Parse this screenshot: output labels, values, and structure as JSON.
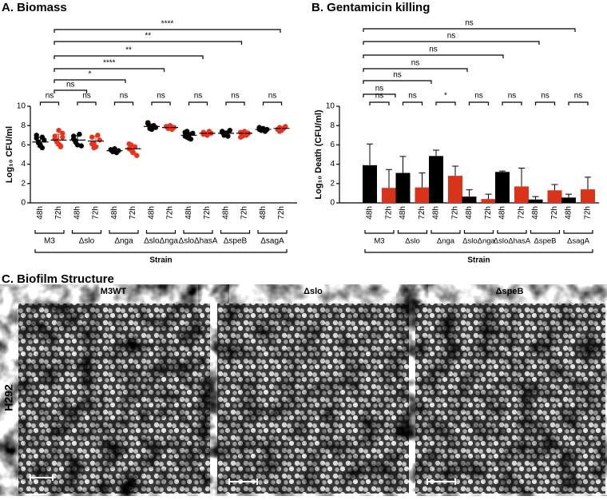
{
  "chart_data": [
    {
      "type": "dot",
      "title": "A. Biomass",
      "y_label": "Log₁₀ CFU/ml",
      "x_label": "Strain",
      "categories": [
        "M3",
        "Δslo",
        "Δnga",
        "ΔsloΔnga",
        "ΔsloΔhasA",
        "ΔspeB",
        "ΔsagA"
      ],
      "ylim": [
        0,
        10
      ],
      "yticks": [
        0,
        2,
        4,
        6,
        8,
        10
      ],
      "series": [
        {
          "name": "48h",
          "color": "#000000",
          "values": [
            6.3,
            6.5,
            5.4,
            7.9,
            7.0,
            7.2,
            7.6
          ],
          "errors": [
            0.5,
            0.45,
            0.15,
            0.25,
            0.3,
            0.25,
            0.15
          ],
          "points": [
            [
              6.7,
              6.3,
              6.0,
              5.7,
              6.5,
              7.0,
              6.2,
              5.9,
              6.8
            ],
            [
              6.9,
              6.4,
              6.0,
              7.1,
              5.9,
              6.6,
              6.3
            ],
            [
              5.5,
              5.3,
              5.6,
              5.2,
              5.4,
              5.5
            ],
            [
              8.2,
              7.9,
              7.6,
              8.0,
              7.8,
              8.3,
              7.7
            ],
            [
              7.3,
              6.8,
              7.0,
              6.6,
              7.2,
              6.9,
              7.4,
              6.7
            ],
            [
              7.4,
              7.0,
              7.2,
              6.9,
              7.5,
              7.3
            ],
            [
              7.6,
              7.5,
              7.7,
              7.4,
              7.6,
              7.8
            ]
          ]
        },
        {
          "name": "72h",
          "color": "#e8341c",
          "values": [
            6.5,
            6.4,
            5.6,
            7.8,
            7.2,
            7.2,
            7.7
          ],
          "errors": [
            0.6,
            0.5,
            0.4,
            0.15,
            0.15,
            0.25,
            0.2
          ],
          "points": [
            [
              6.9,
              6.5,
              6.1,
              5.8,
              7.2,
              6.6,
              6.3,
              7.5,
              5.9,
              6.8
            ],
            [
              6.8,
              6.2,
              5.8,
              7.0,
              6.5,
              6.1,
              5.7
            ],
            [
              6.1,
              5.5,
              5.2,
              5.8,
              4.9,
              5.6,
              6.0,
              5.3
            ],
            [
              7.9,
              7.7,
              8.0,
              7.6,
              7.8,
              7.9
            ],
            [
              7.3,
              7.1,
              7.0,
              7.4,
              7.2,
              7.1
            ],
            [
              7.3,
              6.9,
              7.4,
              7.0,
              7.2,
              6.8
            ],
            [
              7.6,
              7.8,
              7.5,
              7.7,
              7.9,
              7.6,
              7.4
            ]
          ]
        }
      ],
      "pair_significance": [
        "ns",
        "ns",
        "ns",
        "ns",
        "ns",
        "ns",
        "ns"
      ],
      "vs_first_significance": [
        "ns",
        "*",
        "****",
        "**",
        "**",
        "****"
      ]
    },
    {
      "type": "bar",
      "title": "B. Gentamicin killing",
      "y_label": "Log₁₀ Death (CFU/ml)",
      "x_label": "Strain",
      "categories": [
        "M3",
        "Δslo",
        "Δnga",
        "ΔsloΔnga",
        "ΔsloΔhasA",
        "ΔspeB",
        "ΔsagA"
      ],
      "ylim": [
        0,
        10
      ],
      "yticks": [
        0,
        2,
        4,
        6,
        8,
        10
      ],
      "series": [
        {
          "name": "48h",
          "color": "#000000",
          "values": [
            3.9,
            3.1,
            4.85,
            0.65,
            3.2,
            0.35,
            0.55
          ],
          "errors": [
            2.2,
            1.7,
            0.6,
            0.7,
            0.1,
            0.3,
            0.35
          ]
        },
        {
          "name": "72h",
          "color": "#d9331a",
          "values": [
            1.55,
            1.6,
            2.8,
            0.4,
            1.7,
            1.3,
            1.4
          ],
          "errors": [
            1.9,
            1.5,
            1.0,
            0.5,
            1.9,
            0.6,
            1.25
          ]
        }
      ],
      "pair_significance": [
        "ns",
        "ns",
        "*",
        "ns",
        "ns",
        "ns",
        "ns"
      ],
      "vs_first_significance": [
        "ns",
        "ns",
        "ns",
        "ns",
        "ns",
        "ns"
      ]
    }
  ],
  "figure_c": {
    "title": "C. Biofilm Structure",
    "columns": [
      "M3WT",
      "Δslo",
      "ΔspeB"
    ],
    "row_label": "H292"
  }
}
